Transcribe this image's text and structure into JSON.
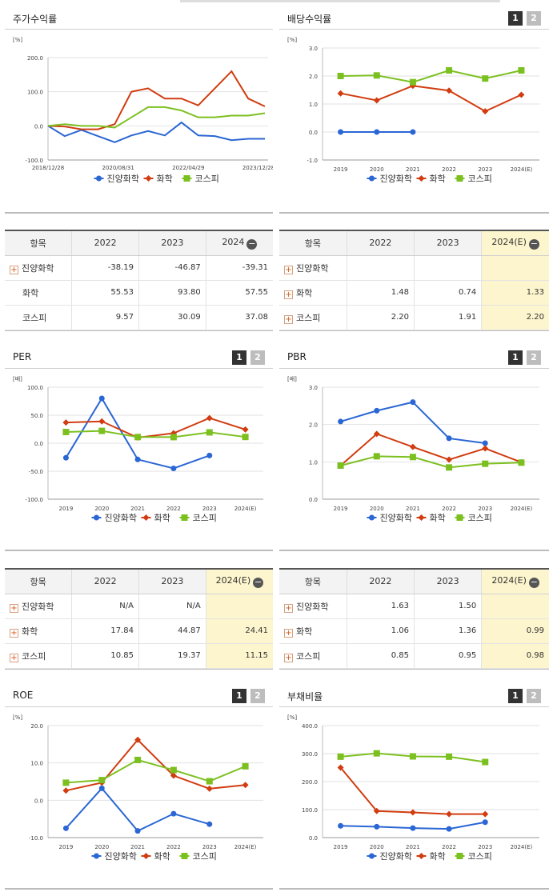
{
  "colors": {
    "s1": "#2a66d4",
    "s2": "#d13c10",
    "s3": "#7cc020"
  },
  "legend": [
    "진양화학",
    "화학",
    "코스피"
  ],
  "tabs": {
    "one": "1",
    "two": "2"
  },
  "charts": {
    "stock": {
      "title": "주가수익률",
      "unit": "[%]",
      "xticks": [
        "2018/12/28",
        "2020/08/31",
        "2022/04/29",
        "2023/12/28"
      ],
      "yticks": [
        "200.0",
        "100.0",
        "0.0",
        "-100.0"
      ],
      "ylim": [
        -100,
        200
      ]
    },
    "div": {
      "title": "배당수익률",
      "unit": "[%]",
      "yticks": [
        "3.0",
        "2.0",
        "1.0",
        "0.0",
        "-1.0"
      ],
      "ylim": [
        -1,
        3
      ],
      "cats": [
        "2019",
        "2020",
        "2021",
        "2022",
        "2023",
        "2024(E)"
      ],
      "series": [
        [
          0,
          0,
          0,
          null,
          null,
          null
        ],
        [
          1.38,
          1.13,
          1.65,
          1.48,
          0.74,
          1.33
        ],
        [
          2.0,
          2.02,
          1.78,
          2.2,
          1.91,
          2.2
        ]
      ]
    },
    "per": {
      "title": "PER",
      "unit": "[배]",
      "yticks": [
        "100.0",
        "50.0",
        "0.0",
        "-50.0",
        "-100.0"
      ],
      "ylim": [
        -100,
        100
      ],
      "cats": [
        "2019",
        "2020",
        "2021",
        "2022",
        "2023",
        "2024(E)"
      ],
      "series": [
        [
          -26,
          80,
          -29,
          -45,
          -22,
          null
        ],
        [
          37,
          39,
          10,
          17.84,
          44.87,
          24.41
        ],
        [
          20,
          22,
          11,
          10.85,
          19.37,
          11.15
        ]
      ]
    },
    "pbr": {
      "title": "PBR",
      "unit": "[배]",
      "yticks": [
        "3.0",
        "2.0",
        "1.0",
        "0.0"
      ],
      "ylim": [
        0,
        3
      ],
      "cats": [
        "2019",
        "2020",
        "2021",
        "2022",
        "2023",
        "2024(E)"
      ],
      "series": [
        [
          2.08,
          2.37,
          2.6,
          1.63,
          1.5,
          null
        ],
        [
          0.9,
          1.75,
          1.4,
          1.06,
          1.36,
          0.99
        ],
        [
          0.9,
          1.15,
          1.13,
          0.85,
          0.95,
          0.98
        ]
      ]
    },
    "roe": {
      "title": "ROE",
      "unit": "[%]",
      "yticks": [
        "20.0",
        "10.0",
        "0.0",
        "-10.0"
      ],
      "ylim": [
        -10,
        20
      ],
      "cats": [
        "2019",
        "2020",
        "2021",
        "2022",
        "2023",
        "2024(E)"
      ],
      "series": [
        [
          -7.5,
          3.2,
          -8.2,
          -3.6,
          -6.4,
          null
        ],
        [
          2.6,
          4.7,
          16.2,
          6.6,
          3.1,
          4.1
        ],
        [
          4.7,
          5.4,
          10.8,
          8.1,
          5.1,
          9.1
        ]
      ]
    },
    "debt": {
      "title": "부채비율",
      "unit": "[%]",
      "yticks": [
        "400.0",
        "300.0",
        "200.0",
        "100.0",
        "0.0"
      ],
      "ylim": [
        0,
        400
      ],
      "cats": [
        "2019",
        "2020",
        "2021",
        "2022",
        "2023",
        "2024(E)"
      ],
      "series": [
        [
          42,
          39,
          34,
          31,
          55,
          null
        ],
        [
          250,
          95,
          90,
          84,
          84,
          null
        ],
        [
          289,
          301,
          290,
          289,
          270,
          null
        ]
      ]
    }
  },
  "chart_data": [
    {
      "type": "line",
      "title": "주가수익률",
      "ylabel": "[%]",
      "ylim": [
        -100,
        200
      ],
      "x": [
        "2018/12/28",
        "2019/06",
        "2019/12",
        "2020/06",
        "2020/08/31",
        "2021/01",
        "2021/06",
        "2021/12",
        "2022/04/29",
        "2022/10",
        "2023/04",
        "2023/09",
        "2023/12/28",
        "2024/06"
      ],
      "series": [
        {
          "name": "진양화학",
          "values": [
            0,
            -30,
            -12,
            -30,
            -48,
            -28,
            -15,
            -28,
            10,
            -28,
            -30,
            -42,
            -38,
            -38
          ]
        },
        {
          "name": "화학",
          "values": [
            0,
            -2,
            -10,
            -10,
            5,
            100,
            110,
            80,
            80,
            60,
            110,
            160,
            80,
            57
          ]
        },
        {
          "name": "코스피",
          "values": [
            0,
            5,
            0,
            0,
            -5,
            25,
            55,
            55,
            45,
            25,
            25,
            30,
            30,
            37
          ]
        }
      ]
    },
    {
      "type": "line",
      "title": "배당수익률",
      "ylabel": "[%]",
      "categories": [
        "2019",
        "2020",
        "2021",
        "2022",
        "2023",
        "2024(E)"
      ],
      "series": [
        {
          "name": "진양화학",
          "values": [
            0,
            0,
            0,
            null,
            null,
            null
          ]
        },
        {
          "name": "화학",
          "values": [
            1.38,
            1.13,
            1.65,
            1.48,
            0.74,
            1.33
          ]
        },
        {
          "name": "코스피",
          "values": [
            2.0,
            2.02,
            1.78,
            2.2,
            1.91,
            2.2
          ]
        }
      ]
    },
    {
      "type": "line",
      "title": "PER",
      "ylabel": "[배]",
      "categories": [
        "2019",
        "2020",
        "2021",
        "2022",
        "2023",
        "2024(E)"
      ],
      "series": [
        {
          "name": "진양화학",
          "values": [
            -26,
            80,
            -29,
            -45,
            -22,
            null
          ]
        },
        {
          "name": "화학",
          "values": [
            37,
            39,
            10,
            17.84,
            44.87,
            24.41
          ]
        },
        {
          "name": "코스피",
          "values": [
            20,
            22,
            11,
            10.85,
            19.37,
            11.15
          ]
        }
      ]
    },
    {
      "type": "line",
      "title": "PBR",
      "ylabel": "[배]",
      "categories": [
        "2019",
        "2020",
        "2021",
        "2022",
        "2023",
        "2024(E)"
      ],
      "series": [
        {
          "name": "진양화학",
          "values": [
            2.08,
            2.37,
            2.6,
            1.63,
            1.5,
            null
          ]
        },
        {
          "name": "화학",
          "values": [
            0.9,
            1.75,
            1.4,
            1.06,
            1.36,
            0.99
          ]
        },
        {
          "name": "코스피",
          "values": [
            0.9,
            1.15,
            1.13,
            0.85,
            0.95,
            0.98
          ]
        }
      ]
    },
    {
      "type": "line",
      "title": "ROE",
      "ylabel": "[%]",
      "categories": [
        "2019",
        "2020",
        "2021",
        "2022",
        "2023",
        "2024(E)"
      ],
      "series": [
        {
          "name": "진양화학",
          "values": [
            -7.5,
            3.2,
            -8.2,
            -3.6,
            -6.4,
            null
          ]
        },
        {
          "name": "화학",
          "values": [
            2.6,
            4.7,
            16.2,
            6.6,
            3.1,
            4.1
          ]
        },
        {
          "name": "코스피",
          "values": [
            4.7,
            5.4,
            10.8,
            8.1,
            5.1,
            9.1
          ]
        }
      ]
    },
    {
      "type": "line",
      "title": "부채비율",
      "ylabel": "[%]",
      "categories": [
        "2019",
        "2020",
        "2021",
        "2022",
        "2023",
        "2024(E)"
      ],
      "series": [
        {
          "name": "진양화학",
          "values": [
            42,
            39,
            34,
            31,
            55,
            null
          ]
        },
        {
          "name": "화학",
          "values": [
            250,
            95,
            90,
            84,
            84,
            null
          ]
        },
        {
          "name": "코스피",
          "values": [
            289,
            301,
            290,
            289,
            270,
            null
          ]
        }
      ]
    }
  ],
  "tables": {
    "stock": {
      "head": [
        "항목",
        "2022",
        "2023",
        "2024"
      ],
      "rows": [
        {
          "label": "진양화학",
          "v": [
            "-38.19",
            "-46.87",
            "-39.31"
          ]
        },
        {
          "label": "화학",
          "v": [
            "55.53",
            "93.80",
            "57.55"
          ]
        },
        {
          "label": "코스피",
          "v": [
            "9.57",
            "30.09",
            "37.08"
          ]
        }
      ]
    },
    "div": {
      "head": [
        "항목",
        "2022",
        "2023",
        "2024(E)"
      ],
      "rows": [
        {
          "label": "진양화학",
          "v": [
            "",
            "",
            ""
          ]
        },
        {
          "label": "화학",
          "v": [
            "1.48",
            "0.74",
            "1.33"
          ]
        },
        {
          "label": "코스피",
          "v": [
            "2.20",
            "1.91",
            "2.20"
          ]
        }
      ]
    },
    "per": {
      "head": [
        "항목",
        "2022",
        "2023",
        "2024(E)"
      ],
      "rows": [
        {
          "label": "진양화학",
          "v": [
            "N/A",
            "N/A",
            ""
          ]
        },
        {
          "label": "화학",
          "v": [
            "17.84",
            "44.87",
            "24.41"
          ]
        },
        {
          "label": "코스피",
          "v": [
            "10.85",
            "19.37",
            "11.15"
          ]
        }
      ]
    },
    "pbr": {
      "head": [
        "항목",
        "2022",
        "2023",
        "2024(E)"
      ],
      "rows": [
        {
          "label": "진양화학",
          "v": [
            "1.63",
            "1.50",
            ""
          ]
        },
        {
          "label": "화학",
          "v": [
            "1.06",
            "1.36",
            "0.99"
          ]
        },
        {
          "label": "코스피",
          "v": [
            "0.85",
            "0.95",
            "0.98"
          ]
        }
      ]
    }
  }
}
